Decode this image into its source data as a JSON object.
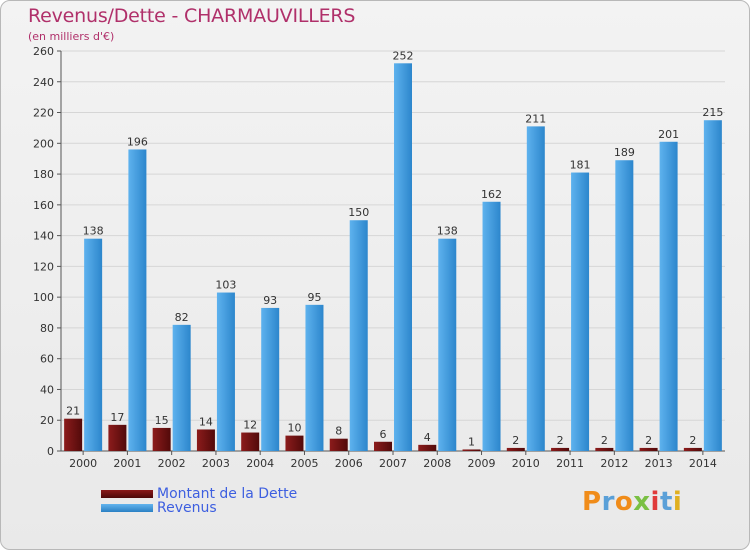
{
  "chart_data": {
    "type": "bar",
    "title": "Revenus/Dette - CHARMAUVILLERS",
    "subtitle": "(en milliers d'€)",
    "xlabel": "",
    "ylabel": "",
    "ylim": [
      0,
      260
    ],
    "yticks": [
      0,
      20,
      40,
      60,
      80,
      100,
      120,
      140,
      160,
      180,
      200,
      220,
      240,
      260
    ],
    "grid": true,
    "categories": [
      "2000",
      "2001",
      "2002",
      "2003",
      "2004",
      "2005",
      "2006",
      "2007",
      "2008",
      "2009",
      "2010",
      "2011",
      "2012",
      "2013",
      "2014"
    ],
    "series": [
      {
        "name": "Montant de la Dette",
        "color": "#7a1414",
        "values": [
          21,
          17,
          15,
          14,
          12,
          10,
          8,
          6,
          4,
          1,
          2,
          2,
          2,
          2,
          2
        ]
      },
      {
        "name": "Revenus",
        "color": "#4aa3e6",
        "values": [
          138,
          196,
          82,
          103,
          93,
          95,
          150,
          252,
          138,
          162,
          211,
          181,
          189,
          201,
          215
        ]
      }
    ],
    "legend_position": "bottom-left"
  },
  "logo": {
    "text": "Proxiti"
  },
  "colors": {
    "title": "#b0306a",
    "legend_text": "#3d5fe0",
    "grid": "#d6d6d6",
    "axis": "#555555",
    "logo_letters": [
      "#f08c1a",
      "#5aa0d8",
      "#f08c1a",
      "#7ac043",
      "#e03a3a",
      "#5aa0d8",
      "#e0b020"
    ]
  }
}
